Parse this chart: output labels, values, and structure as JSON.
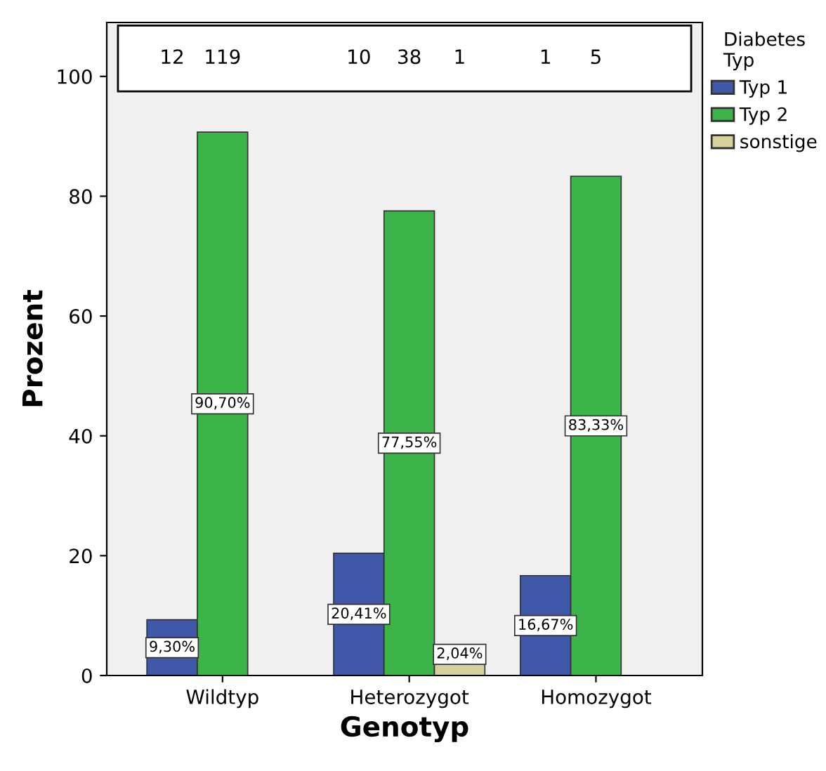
{
  "chart_data": {
    "type": "bar",
    "xlabel": "Genotyp",
    "ylabel": "Prozent",
    "legend_title": "Diabetes\nTyp",
    "legend": "right",
    "categories": [
      "Wildtyp",
      "Heterozygot",
      "Homozygot"
    ],
    "series": [
      {
        "name": "Typ 1",
        "color": "#3f58a8",
        "values": [
          9.3,
          20.41,
          16.67
        ],
        "value_labels": [
          "9,30%",
          "20,41%",
          "16,67%"
        ]
      },
      {
        "name": "Typ 2",
        "color": "#3cb449",
        "values": [
          90.7,
          77.55,
          83.33
        ],
        "value_labels": [
          "90,70%",
          "77,55%",
          "83,33%"
        ]
      },
      {
        "name": "sonstige",
        "color": "#d6d19c",
        "values": [
          null,
          2.04,
          null
        ],
        "value_labels": [
          null,
          "2,04%",
          null
        ]
      }
    ],
    "ylim": [
      0,
      109
    ],
    "yticks": [
      0,
      20,
      40,
      60,
      80,
      100
    ],
    "grid": false,
    "annotations": [
      "12",
      "119",
      "10",
      "38",
      "1",
      "1",
      "5"
    ]
  }
}
